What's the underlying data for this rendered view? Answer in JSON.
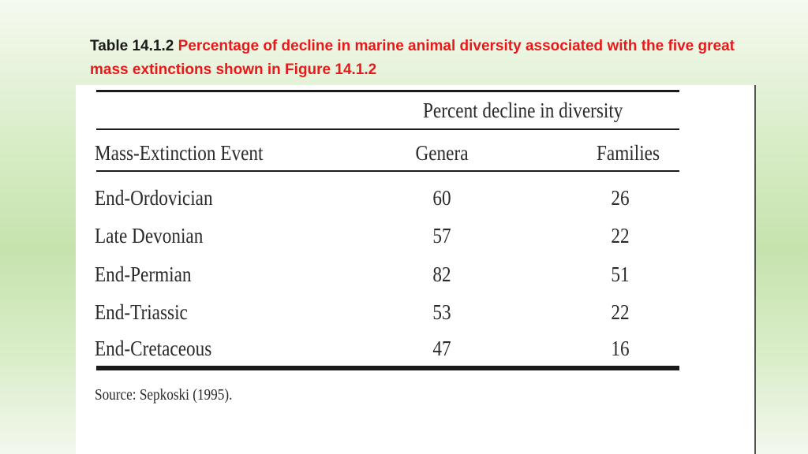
{
  "slide": {
    "table_number": "Table 14.1.2",
    "caption": "Percentage of decline in marine animal diversity associated with the five great mass extinctions shown in Figure 14.1.2"
  },
  "table": {
    "spanner_header": "Percent decline in diversity",
    "headers": [
      "Mass-Extinction Event",
      "Genera",
      "Families"
    ],
    "rows": [
      {
        "event": "End-Ordovician",
        "genera": "60",
        "families": "26"
      },
      {
        "event": "Late Devonian",
        "genera": "57",
        "families": "22"
      },
      {
        "event": "End-Permian",
        "genera": "82",
        "families": "51"
      },
      {
        "event": "End-Triassic",
        "genera": "53",
        "families": "22"
      },
      {
        "event": "End-Cretaceous",
        "genera": "47",
        "families": "16"
      }
    ],
    "source": "Source: Sepkoski (1995)."
  }
}
